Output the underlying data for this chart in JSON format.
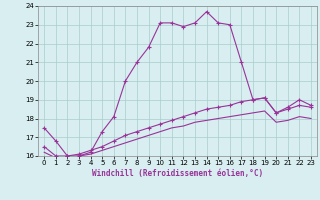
{
  "title": "",
  "xlabel": "Windchill (Refroidissement éolien,°C)",
  "bg_color": "#d8eef0",
  "grid_color": "#aacccc",
  "line_color": "#993399",
  "xlim": [
    -0.5,
    23.5
  ],
  "ylim": [
    16,
    24
  ],
  "yticks": [
    16,
    17,
    18,
    19,
    20,
    21,
    22,
    23,
    24
  ],
  "xticks": [
    0,
    1,
    2,
    3,
    4,
    5,
    6,
    7,
    8,
    9,
    10,
    11,
    12,
    13,
    14,
    15,
    16,
    17,
    18,
    19,
    20,
    21,
    22,
    23
  ],
  "series1_x": [
    0,
    1,
    2,
    3,
    4,
    5,
    6,
    7,
    8,
    9,
    10,
    11,
    12,
    13,
    14,
    15,
    16,
    17,
    18,
    19,
    20,
    21,
    22,
    23
  ],
  "series1_y": [
    17.5,
    16.8,
    16.0,
    16.0,
    16.2,
    17.3,
    18.1,
    20.0,
    21.0,
    21.8,
    23.1,
    23.1,
    22.9,
    23.1,
    23.7,
    23.1,
    23.0,
    21.0,
    19.0,
    19.1,
    18.3,
    18.6,
    19.0,
    18.7
  ],
  "series2_x": [
    0,
    1,
    2,
    3,
    4,
    5,
    6,
    7,
    8,
    9,
    10,
    11,
    12,
    13,
    14,
    15,
    16,
    17,
    18,
    19,
    20,
    21,
    22,
    23
  ],
  "series2_y": [
    16.5,
    16.0,
    16.0,
    16.1,
    16.3,
    16.5,
    16.8,
    17.1,
    17.3,
    17.5,
    17.7,
    17.9,
    18.1,
    18.3,
    18.5,
    18.6,
    18.7,
    18.9,
    19.0,
    19.1,
    18.3,
    18.5,
    18.7,
    18.6
  ],
  "series3_x": [
    0,
    1,
    2,
    3,
    4,
    5,
    6,
    7,
    8,
    9,
    10,
    11,
    12,
    13,
    14,
    15,
    16,
    17,
    18,
    19,
    20,
    21,
    22,
    23
  ],
  "series3_y": [
    16.2,
    15.9,
    15.9,
    16.0,
    16.1,
    16.3,
    16.5,
    16.7,
    16.9,
    17.1,
    17.3,
    17.5,
    17.6,
    17.8,
    17.9,
    18.0,
    18.1,
    18.2,
    18.3,
    18.4,
    17.8,
    17.9,
    18.1,
    18.0
  ],
  "tick_fontsize": 5,
  "xlabel_fontsize": 5.5,
  "linewidth": 0.8,
  "markersize": 3
}
